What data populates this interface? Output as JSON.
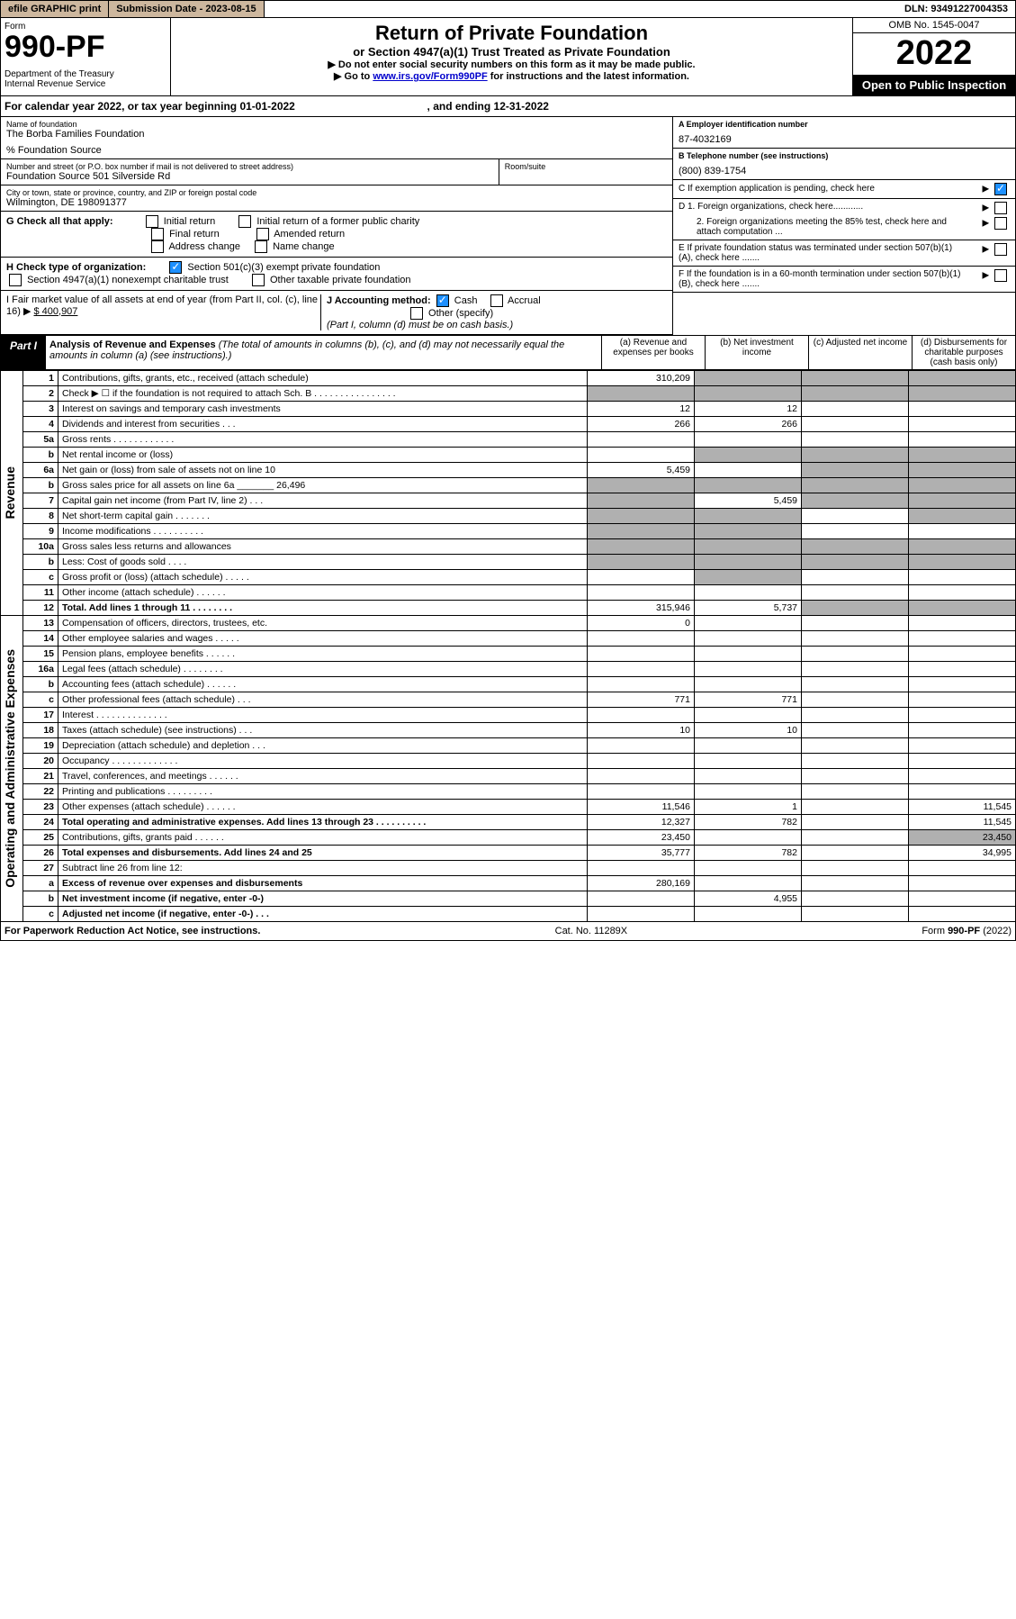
{
  "topbar": {
    "efile": "efile GRAPHIC print",
    "subdate": "Submission Date - 2023-08-15",
    "dln": "DLN: 93491227004353"
  },
  "header": {
    "form": "Form",
    "num": "990-PF",
    "dept": "Department of the Treasury\nInternal Revenue Service",
    "title": "Return of Private Foundation",
    "sub": "or Section 4947(a)(1) Trust Treated as Private Foundation",
    "note1": "▶ Do not enter social security numbers on this form as it may be made public.",
    "note2_pre": "▶ Go to ",
    "note2_link": "www.irs.gov/Form990PF",
    "note2_post": " for instructions and the latest information.",
    "omb": "OMB No. 1545-0047",
    "year": "2022",
    "open": "Open to Public Inspection"
  },
  "calyear": {
    "pre": "For calendar year 2022, or tax year beginning ",
    "begin": "01-01-2022",
    "mid": ", and ending ",
    "end": "12-31-2022"
  },
  "info": {
    "name_lbl": "Name of foundation",
    "name": "The Borba Families Foundation",
    "source": "% Foundation Source",
    "addr_lbl": "Number and street (or P.O. box number if mail is not delivered to street address)",
    "addr": "Foundation Source 501 Silverside Rd",
    "room_lbl": "Room/suite",
    "room": "",
    "city_lbl": "City or town, state or province, country, and ZIP or foreign postal code",
    "city": "Wilmington, DE  198091377",
    "ein_lbl": "A Employer identification number",
    "ein": "87-4032169",
    "tel_lbl": "B Telephone number (see instructions)",
    "tel": "(800) 839-1754",
    "c": "C If exemption application is pending, check here",
    "d1": "D 1. Foreign organizations, check here............",
    "d2": "2. Foreign organizations meeting the 85% test, check here and attach computation ...",
    "e": "E  If private foundation status was terminated under section 507(b)(1)(A), check here .......",
    "f": "F  If the foundation is in a 60-month termination under section 507(b)(1)(B), check here ......."
  },
  "g": {
    "lbl": "G Check all that apply:",
    "i1": "Initial return",
    "i2": "Initial return of a former public charity",
    "fr": "Final return",
    "ar": "Amended return",
    "ac": "Address change",
    "nc": "Name change"
  },
  "h": {
    "lbl": "H Check type of organization:",
    "s1": "Section 501(c)(3) exempt private foundation",
    "s2": "Section 4947(a)(1) nonexempt charitable trust",
    "s3": "Other taxable private foundation"
  },
  "i": {
    "lbl": "I Fair market value of all assets at end of year (from Part II, col. (c), line 16) ▶",
    "val": "$  400,907"
  },
  "j": {
    "lbl": "J Accounting method:",
    "cash": "Cash",
    "accrual": "Accrual",
    "other": "Other (specify)",
    "note": "(Part I, column (d) must be on cash basis.)"
  },
  "part1": {
    "tab": "Part I",
    "title_b": "Analysis of Revenue and Expenses",
    "title_i": " (The total of amounts in columns (b), (c), and (d) may not necessarily equal the amounts in column (a) (see instructions).)",
    "cols": [
      "(a)   Revenue and expenses per books",
      "(b)   Net investment income",
      "(c)   Adjusted net income",
      "(d)   Disbursements for charitable purposes (cash basis only)"
    ]
  },
  "vlabels": {
    "rev": "Revenue",
    "exp": "Operating and Administrative Expenses"
  },
  "rows": [
    {
      "n": "1",
      "d": "Contributions, gifts, grants, etc., received (attach schedule)",
      "a": "310,209"
    },
    {
      "n": "2",
      "d": "Check ▶ ☐ if the foundation is not required to attach Sch. B     .  .  .  .  .  .  .  .  .  .  .  .  .  .  .  ."
    },
    {
      "n": "3",
      "d": "Interest on savings and temporary cash investments",
      "a": "12",
      "b": "12"
    },
    {
      "n": "4",
      "d": "Dividends and interest from securities     .  .  .",
      "a": "266",
      "b": "266"
    },
    {
      "n": "5a",
      "d": "Gross rents     .  .  .  .  .  .  .  .  .  .  .  ."
    },
    {
      "n": "b",
      "d": "Net rental income or (loss)"
    },
    {
      "n": "6a",
      "d": "Net gain or (loss) from sale of assets not on line 10",
      "a": "5,459"
    },
    {
      "n": "b",
      "d": "Gross sales price for all assets on line 6a _______ 26,496"
    },
    {
      "n": "7",
      "d": "Capital gain net income (from Part IV, line 2)   .  .  .",
      "b": "5,459"
    },
    {
      "n": "8",
      "d": "Net short-term capital gain   .  .  .  .  .  .  ."
    },
    {
      "n": "9",
      "d": "Income modifications  .  .  .  .  .  .  .  .  .  ."
    },
    {
      "n": "10a",
      "d": "Gross sales less returns and allowances"
    },
    {
      "n": "b",
      "d": "Less: Cost of goods sold    .  .  .  ."
    },
    {
      "n": "c",
      "d": "Gross profit or (loss) (attach schedule)    .  .  .  .  ."
    },
    {
      "n": "11",
      "d": "Other income (attach schedule)    .  .  .  .  .  ."
    },
    {
      "n": "12",
      "d": "Total. Add lines 1 through 11   .  .  .  .  .  .  .  .",
      "a": "315,946",
      "b": "5,737",
      "bold": true
    },
    {
      "n": "13",
      "d": "Compensation of officers, directors, trustees, etc.",
      "a": "0"
    },
    {
      "n": "14",
      "d": "Other employee salaries and wages    .  .  .  .  ."
    },
    {
      "n": "15",
      "d": "Pension plans, employee benefits  .  .  .  .  .  ."
    },
    {
      "n": "16a",
      "d": "Legal fees (attach schedule)  .  .  .  .  .  .  .  ."
    },
    {
      "n": "b",
      "d": "Accounting fees (attach schedule)  .  .  .  .  .  ."
    },
    {
      "n": "c",
      "d": "Other professional fees (attach schedule)    .  .  .",
      "a": "771",
      "b": "771"
    },
    {
      "n": "17",
      "d": "Interest  .  .  .  .  .  .  .  .  .  .  .  .  .  ."
    },
    {
      "n": "18",
      "d": "Taxes (attach schedule) (see instructions)    .  .  .",
      "a": "10",
      "b": "10"
    },
    {
      "n": "19",
      "d": "Depreciation (attach schedule) and depletion   .  .  ."
    },
    {
      "n": "20",
      "d": "Occupancy  .  .  .  .  .  .  .  .  .  .  .  .  ."
    },
    {
      "n": "21",
      "d": "Travel, conferences, and meetings  .  .  .  .  .  ."
    },
    {
      "n": "22",
      "d": "Printing and publications  .  .  .  .  .  .  .  .  ."
    },
    {
      "n": "23",
      "d": "Other expenses (attach schedule)  .  .  .  .  .  .",
      "a": "11,546",
      "b": "1",
      "dd": "11,545"
    },
    {
      "n": "24",
      "d": "Total operating and administrative expenses. Add lines 13 through 23   .  .  .  .  .  .  .  .  .  .",
      "a": "12,327",
      "b": "782",
      "dd": "11,545",
      "bold": true
    },
    {
      "n": "25",
      "d": "Contributions, gifts, grants paid    .  .  .  .  .  .",
      "a": "23,450",
      "dd": "23,450"
    },
    {
      "n": "26",
      "d": "Total expenses and disbursements. Add lines 24 and 25",
      "a": "35,777",
      "b": "782",
      "dd": "34,995",
      "bold": true
    },
    {
      "n": "27",
      "d": "Subtract line 26 from line 12:"
    },
    {
      "n": "a",
      "d": "Excess of revenue over expenses and disbursements",
      "a": "280,169",
      "bold": true
    },
    {
      "n": "b",
      "d": "Net investment income (if negative, enter -0-)",
      "b": "4,955",
      "bold": true
    },
    {
      "n": "c",
      "d": "Adjusted net income (if negative, enter -0-)   .  .  .",
      "bold": true
    }
  ],
  "shaded": {
    "1": [
      "b",
      "c",
      "d"
    ],
    "2": [
      "a",
      "b",
      "c",
      "d"
    ],
    "5a": [],
    "b": [],
    "6a": [
      "c",
      "d"
    ],
    "6b": [
      "a",
      "b",
      "c",
      "d"
    ],
    "7": [
      "a",
      "c",
      "d"
    ],
    "8": [
      "a",
      "b",
      "d"
    ],
    "9": [
      "a",
      "b"
    ],
    "10a": [
      "a",
      "b",
      "c",
      "d"
    ],
    "10b": [
      "a",
      "b",
      "c",
      "d"
    ],
    "c_10": [
      "b"
    ],
    "12": [
      "c",
      "d"
    ],
    "19": [
      "d"
    ],
    "25": [
      "b",
      "c"
    ],
    "27": [
      "a",
      "b",
      "c",
      "d"
    ],
    "27a": [
      "b",
      "c",
      "d"
    ],
    "27b": [
      "a",
      "c",
      "d"
    ],
    "27c": [
      "a",
      "b",
      "d"
    ]
  },
  "footer": {
    "left": "For Paperwork Reduction Act Notice, see instructions.",
    "mid": "Cat. No. 11289X",
    "right": "Form 990-PF (2022)"
  }
}
